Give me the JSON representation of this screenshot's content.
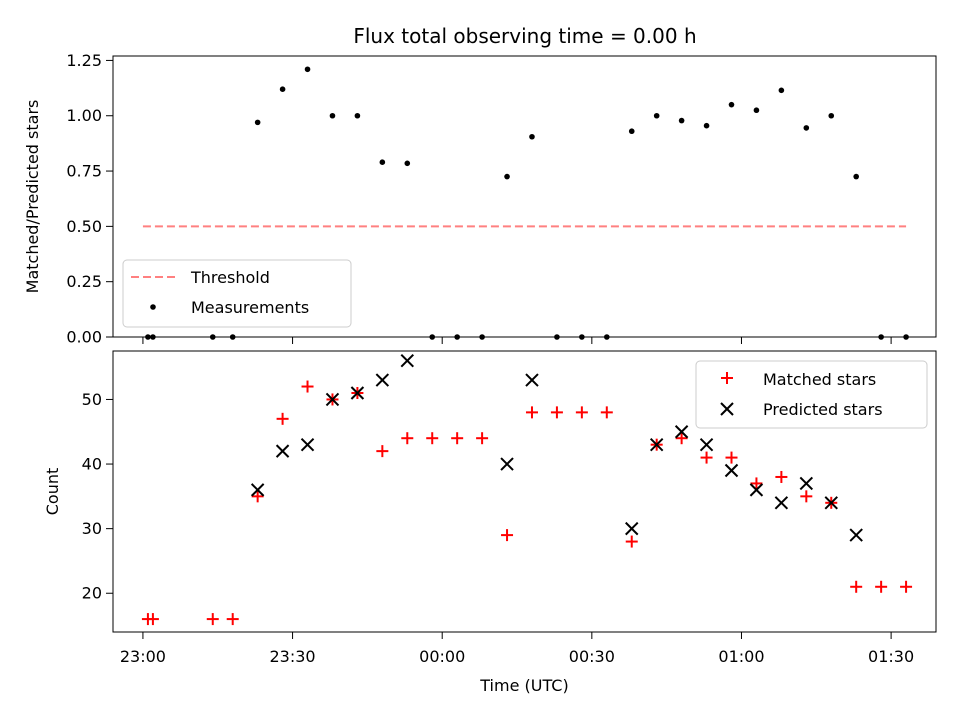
{
  "chart_data": [
    {
      "type": "scatter",
      "title": "Flux total observing time = 0.00 h",
      "ylabel": "Matched/Predicted stars",
      "ylim": [
        0,
        1.27
      ],
      "yticks": [
        0.0,
        0.25,
        0.5,
        0.75,
        1.0,
        1.25
      ],
      "ytick_labels": [
        "0.00",
        "0.25",
        "0.50",
        "0.75",
        "1.00",
        "1.25"
      ],
      "xticks": [
        "23:00",
        "23:30",
        "00:00",
        "00:30",
        "01:00",
        "01:30"
      ],
      "legend_position": "lower-left",
      "threshold": {
        "name": "Threshold",
        "value": 0.5,
        "x_start": "23:00",
        "x_end": "01:33",
        "color": "#ff8080",
        "style": "dashed"
      },
      "series": [
        {
          "name": "Measurements",
          "color": "#000000",
          "marker": "dot",
          "x": [
            "23:01",
            "23:02",
            "23:14",
            "23:18",
            "23:23",
            "23:28",
            "23:33",
            "23:38",
            "23:43",
            "23:48",
            "23:53",
            "23:58",
            "00:03",
            "00:08",
            "00:13",
            "00:18",
            "00:23",
            "00:28",
            "00:33",
            "00:38",
            "00:43",
            "00:48",
            "00:53",
            "00:58",
            "01:03",
            "01:08",
            "01:13",
            "01:18",
            "01:23",
            "01:28",
            "01:33"
          ],
          "y": [
            0,
            0,
            0,
            0,
            0.97,
            1.12,
            1.21,
            1.0,
            1.0,
            0.79,
            0.785,
            0,
            0,
            0,
            0.725,
            0.905,
            0,
            0,
            0,
            0.93,
            1.0,
            0.978,
            0.955,
            1.05,
            1.025,
            1.115,
            0.945,
            1.0,
            0.725,
            0,
            0
          ]
        }
      ]
    },
    {
      "type": "scatter",
      "xlabel": "Time (UTC)",
      "ylabel": "Count",
      "ylim": [
        14,
        57.5
      ],
      "yticks": [
        20,
        30,
        40,
        50
      ],
      "xticks": [
        "23:00",
        "23:30",
        "00:00",
        "00:30",
        "01:00",
        "01:30"
      ],
      "xlim_minutes_from_2300": [
        -6,
        159
      ],
      "legend_position": "top-right",
      "series": [
        {
          "name": "Matched stars",
          "color": "#ff0000",
          "marker": "plus",
          "x": [
            "23:01",
            "23:02",
            "23:14",
            "23:18",
            "23:23",
            "23:28",
            "23:33",
            "23:38",
            "23:43",
            "23:48",
            "23:53",
            "23:58",
            "00:03",
            "00:08",
            "00:13",
            "00:18",
            "00:23",
            "00:28",
            "00:33",
            "00:38",
            "00:43",
            "00:48",
            "00:53",
            "00:58",
            "01:03",
            "01:08",
            "01:13",
            "01:18",
            "01:23",
            "01:28",
            "01:33"
          ],
          "y": [
            16,
            16,
            16,
            16,
            35,
            47,
            52,
            50,
            51,
            42,
            44,
            44,
            44,
            44,
            29,
            48,
            48,
            48,
            48,
            28,
            43,
            44,
            41,
            41,
            37,
            38,
            35,
            34,
            21,
            21,
            21
          ]
        },
        {
          "name": "Predicted stars",
          "color": "#000000",
          "marker": "x",
          "x": [
            "23:23",
            "23:28",
            "23:33",
            "23:38",
            "23:43",
            "23:48",
            "23:53",
            "00:13",
            "00:18",
            "00:38",
            "00:43",
            "00:48",
            "00:53",
            "00:58",
            "01:03",
            "01:08",
            "01:13",
            "01:18",
            "01:23"
          ],
          "y": [
            36,
            42,
            43,
            50,
            51,
            53,
            56,
            40,
            53,
            30,
            43,
            45,
            43,
            39,
            36,
            34,
            37,
            34,
            29
          ]
        }
      ]
    }
  ]
}
